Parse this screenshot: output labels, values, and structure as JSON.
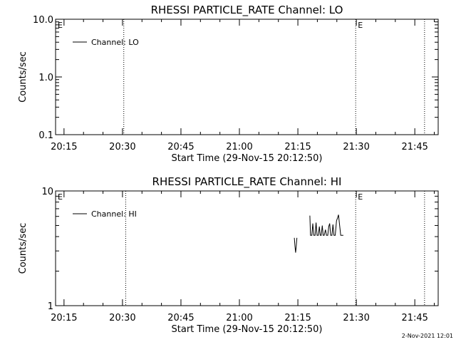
{
  "footer_timestamp": "2-Nov-2021 12:01",
  "chart_data": [
    {
      "type": "line",
      "title": "RHESSI PARTICLE_RATE Channel: LO",
      "xlabel": "Start Time (29-Nov-15 20:12:50)",
      "ylabel": "Counts/sec",
      "y_scale": "log",
      "ylim": [
        0.1,
        10.0
      ],
      "y_ticks": [
        {
          "value": 10.0,
          "label": "10.0"
        },
        {
          "value": 1.0,
          "label": "1.0"
        },
        {
          "value": 0.1,
          "label": "0.1"
        }
      ],
      "xlim": [
        "20:12:50",
        "21:51:00"
      ],
      "x_ticks": [
        "20:15",
        "20:30",
        "20:45",
        "21:00",
        "21:15",
        "21:30",
        "21:45"
      ],
      "grid": false,
      "legend_position": "top-left",
      "series": [
        {
          "name": "Channel: LO",
          "points": []
        }
      ],
      "event_markers": [
        {
          "time": "20:30:20",
          "label": ""
        },
        {
          "time": "21:29:50",
          "label": "E"
        },
        {
          "time": "21:47:30",
          "label": ""
        }
      ],
      "edge_label": "E"
    },
    {
      "type": "line",
      "title": "RHESSI PARTICLE_RATE Channel: HI",
      "xlabel": "Start Time (29-Nov-15 20:12:50)",
      "ylabel": "Counts/sec",
      "y_scale": "log",
      "ylim": [
        1,
        10
      ],
      "y_ticks": [
        {
          "value": 10,
          "label": "10"
        },
        {
          "value": 1,
          "label": "1"
        }
      ],
      "xlim": [
        "20:12:50",
        "21:51:00"
      ],
      "x_ticks": [
        "20:15",
        "20:30",
        "20:45",
        "21:00",
        "21:15",
        "21:30",
        "21:45"
      ],
      "grid": false,
      "legend_position": "top-left",
      "series": [
        {
          "name": "Channel: HI",
          "segments": [
            [
              [
                "21:14:05",
                3.9
              ],
              [
                "21:14:15",
                3.3
              ],
              [
                "21:14:25",
                2.9
              ],
              [
                "21:14:35",
                3.3
              ],
              [
                "21:14:45",
                3.9
              ]
            ],
            [
              [
                "21:18:05",
                6.1
              ],
              [
                "21:18:15",
                4.1
              ],
              [
                "21:18:35",
                4.1
              ],
              [
                "21:18:50",
                5.2
              ],
              [
                "21:19:05",
                4.1
              ],
              [
                "21:19:25",
                4.1
              ],
              [
                "21:19:40",
                5.3
              ],
              [
                "21:19:55",
                4.1
              ],
              [
                "21:20:15",
                4.1
              ],
              [
                "21:20:30",
                4.9
              ],
              [
                "21:20:45",
                4.1
              ],
              [
                "21:21:00",
                4.1
              ],
              [
                "21:21:15",
                5.0
              ],
              [
                "21:21:30",
                4.1
              ],
              [
                "21:21:45",
                4.1
              ],
              [
                "21:22:05",
                4.6
              ],
              [
                "21:22:20",
                4.1
              ],
              [
                "21:22:40",
                4.1
              ],
              [
                "21:22:55",
                4.9
              ],
              [
                "21:23:10",
                5.2
              ],
              [
                "21:23:25",
                4.1
              ],
              [
                "21:23:45",
                4.1
              ],
              [
                "21:24:00",
                5.1
              ],
              [
                "21:24:15",
                4.1
              ],
              [
                "21:24:35",
                4.1
              ],
              [
                "21:24:55",
                5.5
              ],
              [
                "21:25:10",
                5.8
              ],
              [
                "21:25:25",
                6.2
              ],
              [
                "21:25:40",
                5.2
              ],
              [
                "21:26:00",
                4.1
              ],
              [
                "21:26:40",
                4.1
              ]
            ]
          ]
        }
      ],
      "event_markers": [
        {
          "time": "20:30:50",
          "label": ""
        },
        {
          "time": "21:29:50",
          "label": "E"
        },
        {
          "time": "21:47:30",
          "label": ""
        }
      ],
      "edge_label": "E"
    }
  ]
}
